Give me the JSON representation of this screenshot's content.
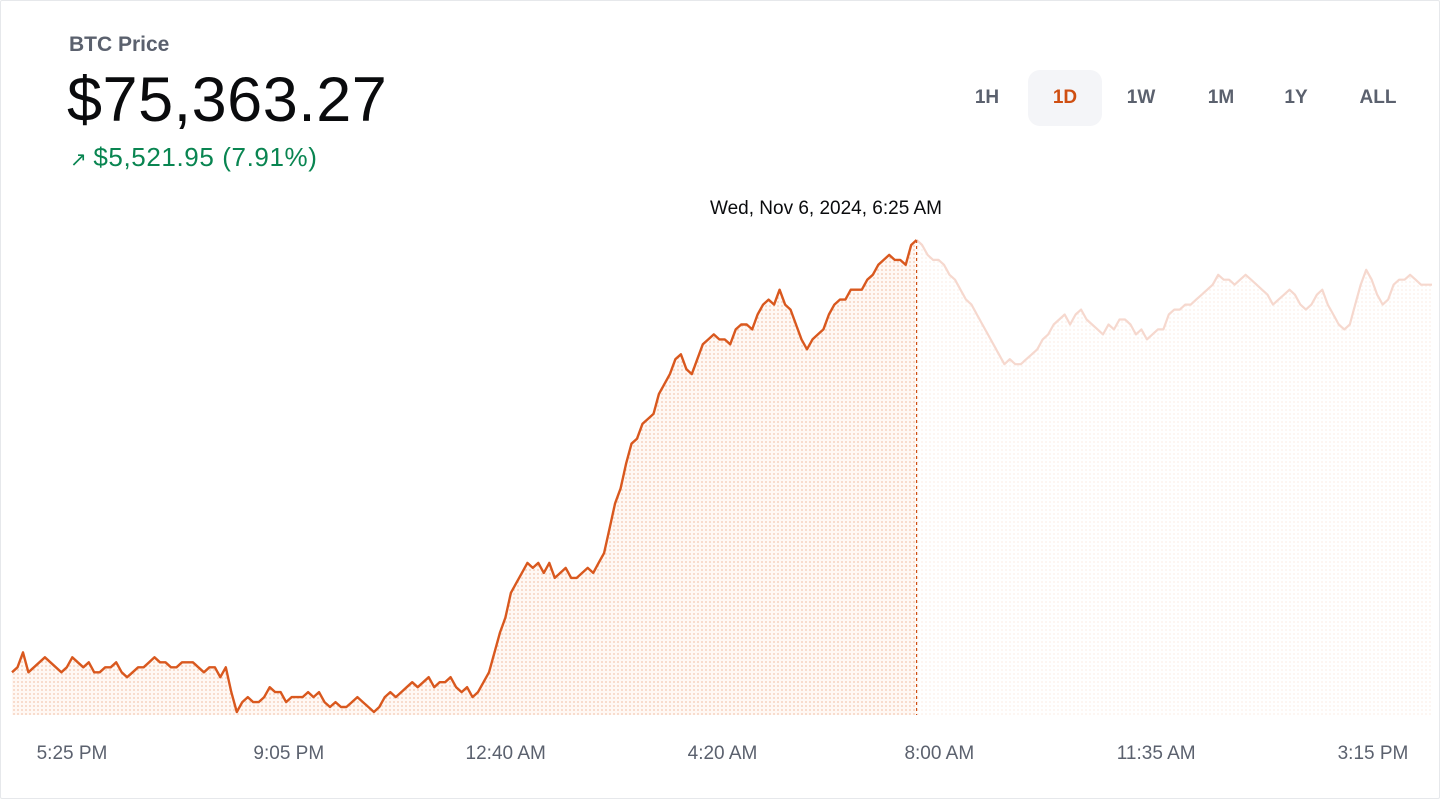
{
  "header": {
    "title": "BTC Price",
    "price": "$75,363.27",
    "change_arrow": "↗",
    "change": "$5,521.95 (7.91%)"
  },
  "ranges": [
    {
      "label": "1H",
      "active": false
    },
    {
      "label": "1D",
      "active": true
    },
    {
      "label": "1W",
      "active": false
    },
    {
      "label": "1M",
      "active": false
    },
    {
      "label": "1Y",
      "active": false
    },
    {
      "label": "ALL",
      "active": false
    }
  ],
  "tooltip": {
    "label": "Wed, Nov 6, 2024, 6:25 AM"
  },
  "colors": {
    "accent": "#cf4f12",
    "line_active": "#d9581e",
    "line_faded": "#f6d8ce",
    "positive": "#098551",
    "muted": "#5b616e"
  },
  "chart_data": {
    "type": "line",
    "title": "",
    "xlabel": "",
    "ylabel": "",
    "x_ticks": [
      "5:25 PM",
      "9:05 PM",
      "12:40 AM",
      "4:20 AM",
      "8:00 AM",
      "11:35 AM",
      "3:15 PM"
    ],
    "hover_index": 165,
    "series": [
      {
        "values": [
          -1.4,
          -1.3,
          -1.0,
          -1.4,
          -1.3,
          -1.2,
          -1.1,
          -1.2,
          -1.3,
          -1.4,
          -1.3,
          -1.1,
          -1.2,
          -1.3,
          -1.2,
          -1.4,
          -1.4,
          -1.3,
          -1.3,
          -1.2,
          -1.4,
          -1.5,
          -1.4,
          -1.3,
          -1.3,
          -1.2,
          -1.1,
          -1.2,
          -1.2,
          -1.3,
          -1.3,
          -1.2,
          -1.2,
          -1.2,
          -1.3,
          -1.4,
          -1.3,
          -1.3,
          -1.5,
          -1.3,
          -1.8,
          -2.2,
          -2.0,
          -1.9,
          -2.0,
          -2.0,
          -1.9,
          -1.7,
          -1.8,
          -1.8,
          -2.0,
          -1.9,
          -1.9,
          -1.9,
          -1.8,
          -1.9,
          -1.8,
          -2.0,
          -2.1,
          -2.0,
          -2.1,
          -2.1,
          -2.0,
          -1.9,
          -2.0,
          -2.1,
          -2.2,
          -2.1,
          -1.9,
          -1.8,
          -1.9,
          -1.8,
          -1.7,
          -1.6,
          -1.7,
          -1.6,
          -1.5,
          -1.7,
          -1.6,
          -1.6,
          -1.5,
          -1.7,
          -1.8,
          -1.7,
          -1.9,
          -1.8,
          -1.6,
          -1.4,
          -1.0,
          -0.6,
          -0.3,
          0.2,
          0.4,
          0.6,
          0.8,
          0.7,
          0.8,
          0.6,
          0.8,
          0.5,
          0.6,
          0.7,
          0.5,
          0.5,
          0.6,
          0.7,
          0.6,
          0.8,
          1.0,
          1.5,
          2.0,
          2.3,
          2.8,
          3.2,
          3.3,
          3.6,
          3.7,
          3.8,
          4.2,
          4.4,
          4.6,
          4.9,
          5.0,
          4.7,
          4.6,
          4.9,
          5.2,
          5.3,
          5.4,
          5.3,
          5.3,
          5.2,
          5.5,
          5.6,
          5.6,
          5.5,
          5.8,
          6.0,
          6.1,
          6.0,
          6.3,
          6.0,
          5.9,
          5.6,
          5.3,
          5.1,
          5.3,
          5.4,
          5.5,
          5.8,
          6.0,
          6.1,
          6.1,
          6.3,
          6.3,
          6.3,
          6.5,
          6.6,
          6.8,
          6.9,
          7.0,
          6.9,
          6.9,
          6.8,
          7.2,
          7.3,
          7.2,
          7.0,
          6.9,
          6.9,
          6.8,
          6.6,
          6.5,
          6.3,
          6.1,
          6.0,
          5.8,
          5.6,
          5.4,
          5.2,
          5.0,
          4.8,
          4.9,
          4.8,
          4.8,
          4.9,
          5.0,
          5.1,
          5.3,
          5.4,
          5.6,
          5.7,
          5.8,
          5.6,
          5.8,
          5.9,
          5.7,
          5.6,
          5.5,
          5.4,
          5.6,
          5.5,
          5.7,
          5.7,
          5.6,
          5.4,
          5.5,
          5.3,
          5.4,
          5.5,
          5.5,
          5.8,
          5.9,
          5.9,
          6.0,
          6.0,
          6.1,
          6.2,
          6.3,
          6.4,
          6.6,
          6.5,
          6.5,
          6.4,
          6.5,
          6.6,
          6.5,
          6.4,
          6.3,
          6.2,
          6.0,
          6.1,
          6.2,
          6.3,
          6.2,
          6.0,
          5.9,
          6.0,
          6.2,
          6.3,
          6.0,
          5.8,
          5.6,
          5.5,
          5.6,
          6.0,
          6.4,
          6.7,
          6.5,
          6.2,
          6.0,
          6.1,
          6.4,
          6.5,
          6.5,
          6.6,
          6.5,
          6.4,
          6.4,
          6.4
        ]
      }
    ]
  }
}
